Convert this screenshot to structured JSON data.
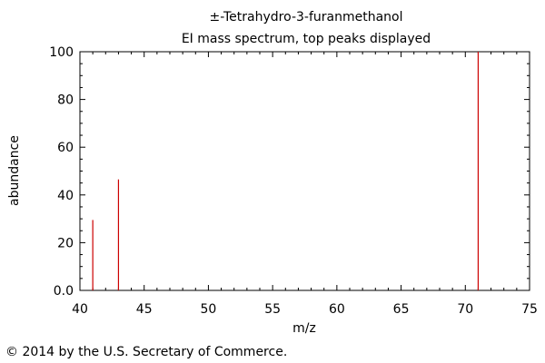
{
  "chart_data": {
    "type": "bar",
    "title": "±-Tetrahydro-3-furanmethanol",
    "subtitle": "EI mass spectrum, top peaks displayed",
    "xlabel": "m/z",
    "ylabel": "abundance",
    "xlim": [
      40,
      75
    ],
    "ylim": [
      0,
      100
    ],
    "x_ticks": [
      40,
      45,
      50,
      55,
      60,
      65,
      70,
      75
    ],
    "x_tick_labels": [
      "40",
      "45",
      "50",
      "55",
      "60",
      "65",
      "70",
      "75"
    ],
    "y_ticks": [
      0,
      20,
      40,
      60,
      80,
      100
    ],
    "y_tick_labels": [
      "0.0",
      "20",
      "40",
      "60",
      "80",
      "100"
    ],
    "grid": false,
    "peak_color": "#cc0000",
    "x": [
      41,
      43,
      71
    ],
    "values": [
      29.5,
      46.5,
      100
    ]
  },
  "footer": {
    "copyright": "© 2014 by the U.S. Secretary of Commerce."
  }
}
